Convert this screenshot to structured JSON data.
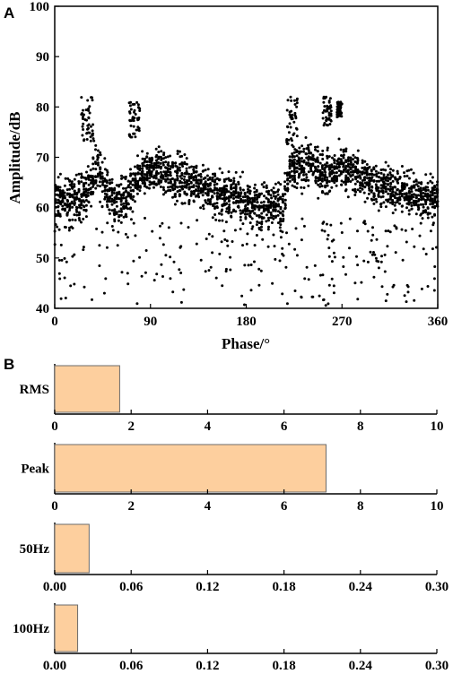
{
  "panel_a_label": "A",
  "panel_b_label": "B",
  "chart_data": [
    {
      "type": "scatter",
      "panel": "A",
      "xlabel": "Phase/°",
      "ylabel": "Amplitude/dB",
      "xlim": [
        0,
        360
      ],
      "ylim": [
        40,
        100
      ],
      "xticks": [
        0,
        90,
        180,
        270,
        360
      ],
      "yticks": [
        40,
        50,
        60,
        70,
        80,
        90,
        100
      ],
      "grid": false,
      "marker_color": "#000000",
      "envelope": {
        "x": [
          0,
          10,
          20,
          30,
          40,
          50,
          60,
          70,
          80,
          90,
          100,
          110,
          120,
          130,
          140,
          150,
          160,
          170,
          180,
          190,
          200,
          210,
          215,
          220,
          230,
          240,
          250,
          260,
          270,
          280,
          290,
          300,
          310,
          320,
          330,
          340,
          350,
          360
        ],
        "y": [
          62,
          61,
          62,
          63,
          68,
          63,
          61,
          62,
          66,
          68,
          67,
          66,
          66,
          65,
          64,
          63,
          63,
          62,
          61,
          60,
          61,
          61,
          60,
          67,
          68,
          69,
          67,
          67,
          68,
          67,
          66,
          65,
          64,
          64,
          63,
          63,
          62,
          62
        ],
        "spread": 4
      },
      "high_clusters": [
        {
          "x_range": [
            25,
            37
          ],
          "y_range": [
            73,
            82
          ]
        },
        {
          "x_range": [
            70,
            80
          ],
          "y_range": [
            74,
            81
          ]
        },
        {
          "x_range": [
            218,
            228
          ],
          "y_range": [
            72,
            82
          ]
        },
        {
          "x_range": [
            252,
            260
          ],
          "y_range": [
            76,
            82
          ]
        },
        {
          "x_range": [
            265,
            270
          ],
          "y_range": [
            78,
            81
          ]
        }
      ],
      "sparse_points": {
        "y_range": [
          40,
          58
        ]
      }
    },
    {
      "type": "bar",
      "panel": "B",
      "orientation": "horizontal",
      "color": "#FDCF9E",
      "edge_color": "#6b6b6b",
      "subplots": [
        {
          "category": "RMS",
          "value": 1.7,
          "xlim": [
            0,
            10
          ],
          "xticks": [
            "0",
            "2",
            "4",
            "6",
            "8",
            "10"
          ]
        },
        {
          "category": "Peak",
          "value": 7.1,
          "xlim": [
            0,
            10
          ],
          "xticks": [
            "0",
            "2",
            "4",
            "6",
            "8",
            "10"
          ]
        },
        {
          "category": "50Hz",
          "value": 0.027,
          "xlim": [
            0,
            0.3
          ],
          "xticks": [
            "0.00",
            "0.06",
            "0.12",
            "0.18",
            "0.24",
            "0.30"
          ]
        },
        {
          "category": "100Hz",
          "value": 0.018,
          "xlim": [
            0,
            0.3
          ],
          "xticks": [
            "0.00",
            "0.06",
            "0.12",
            "0.18",
            "0.24",
            "0.30"
          ]
        }
      ]
    }
  ]
}
